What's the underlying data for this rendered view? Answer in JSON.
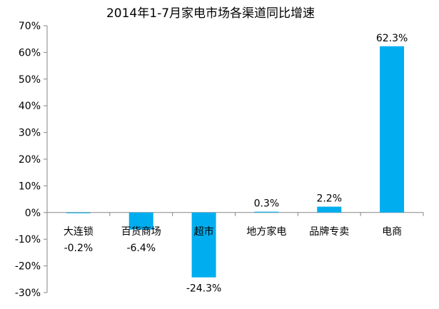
{
  "chart_data": {
    "type": "bar",
    "title": "2014年1-7月家电市场各渠道同比增速",
    "xlabel": "",
    "ylabel": "",
    "categories": [
      "大连锁",
      "百货商场",
      "超市",
      "地方家电",
      "品牌专卖",
      "电商"
    ],
    "values": [
      -0.2,
      -6.4,
      -24.3,
      0.3,
      2.2,
      62.3
    ],
    "data_labels": [
      "-0.2%",
      "-6.4%",
      "-24.3%",
      "0.3%",
      "2.2%",
      "62.3%"
    ],
    "ylim": [
      -30,
      70
    ],
    "yticks": [
      70,
      60,
      50,
      40,
      30,
      20,
      10,
      0,
      -10,
      -20,
      -30
    ],
    "ytick_labels": [
      "70%",
      "60%",
      "50%",
      "40%",
      "30%",
      "20%",
      "10%",
      "0%",
      "-10%",
      "-20%",
      "-30%"
    ],
    "grid": false,
    "legend": "none",
    "bar_color": "#00AEEF"
  }
}
